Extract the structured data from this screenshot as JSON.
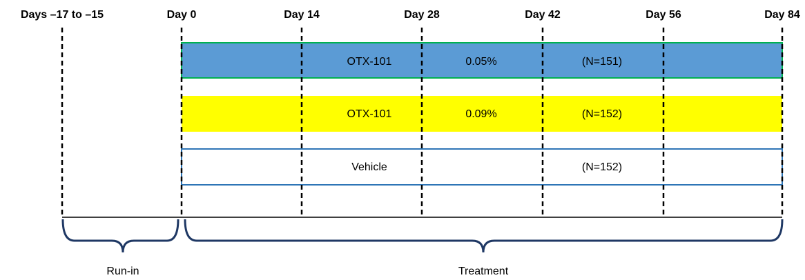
{
  "timepoints": [
    "Days –17 to –15",
    "Day 0",
    "Day 14",
    "Day 28",
    "Day 42",
    "Day 56",
    "Day 84"
  ],
  "arms": [
    {
      "drug": "OTX-101",
      "dose": "0.05%",
      "n": "(N=151)"
    },
    {
      "drug": "OTX-101",
      "dose": "0.09%",
      "n": "(N=152)"
    },
    {
      "drug": "Vehicle",
      "n": "(N=152)"
    }
  ],
  "periods": [
    "Run-in",
    "Treatment"
  ]
}
